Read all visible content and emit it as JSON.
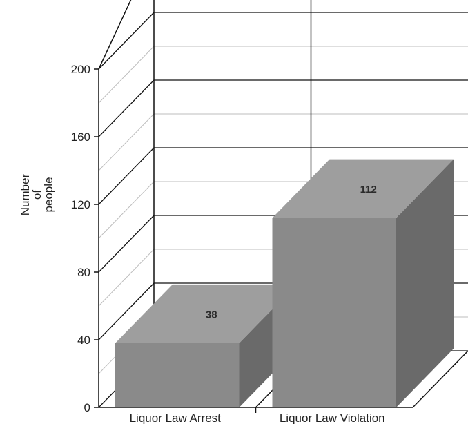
{
  "chart_data": {
    "type": "bar",
    "style": "3d",
    "categories": [
      "Liquor Law Arrest",
      "Liquor Law Violation"
    ],
    "values": [
      38,
      112
    ],
    "ylabel_lines": [
      "Number",
      "of",
      "people"
    ],
    "ylim": [
      0,
      200
    ],
    "yticks": [
      0,
      40,
      80,
      120,
      160,
      200
    ],
    "data_labels": [
      "38",
      "112"
    ],
    "grid": true,
    "colors": {
      "bar_front": "#8a8a8a",
      "bar_top": "#9e9e9e",
      "bar_side": "#6a6a6a",
      "grid": "#111111"
    }
  }
}
